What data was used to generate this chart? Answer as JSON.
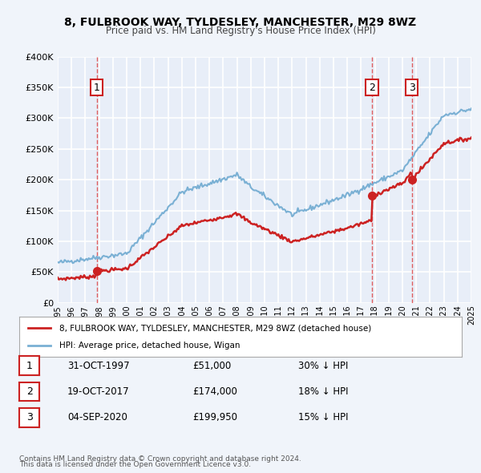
{
  "title": "8, FULBROOK WAY, TYLDESLEY, MANCHESTER, M29 8WZ",
  "subtitle": "Price paid vs. HM Land Registry's House Price Index (HPI)",
  "bg_color": "#f0f4fa",
  "plot_bg_color": "#e8eef8",
  "red_color": "#cc2222",
  "blue_color": "#7ab0d4",
  "grid_color": "#ffffff",
  "dashed_line_color": "#dd4444",
  "sale_marker_color": "#cc2222",
  "sale_points": [
    {
      "year": 1997.83,
      "price": 51000,
      "label": "1"
    },
    {
      "year": 2017.8,
      "price": 174000,
      "label": "2"
    },
    {
      "year": 2020.67,
      "price": 199950,
      "label": "3"
    }
  ],
  "table_rows": [
    {
      "num": "1",
      "date": "31-OCT-1997",
      "price": "£51,000",
      "pct": "30% ↓ HPI"
    },
    {
      "num": "2",
      "date": "19-OCT-2017",
      "price": "£174,000",
      "pct": "18% ↓ HPI"
    },
    {
      "num": "3",
      "date": "04-SEP-2020",
      "price": "£199,950",
      "pct": "15% ↓ HPI"
    }
  ],
  "legend_line1": "8, FULBROOK WAY, TYLDESLEY, MANCHESTER, M29 8WZ (detached house)",
  "legend_line2": "HPI: Average price, detached house, Wigan",
  "footnote1": "Contains HM Land Registry data © Crown copyright and database right 2024.",
  "footnote2": "This data is licensed under the Open Government Licence v3.0.",
  "ylim": [
    0,
    400000
  ],
  "yticks": [
    0,
    50000,
    100000,
    150000,
    200000,
    250000,
    300000,
    350000,
    400000
  ],
  "xmin": 1995,
  "xmax": 2025
}
